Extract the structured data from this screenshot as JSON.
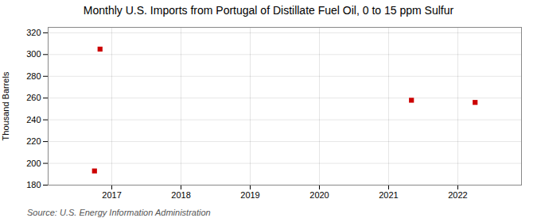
{
  "chart_data": {
    "type": "scatter",
    "title": "Monthly U.S. Imports from Portugal of Distillate Fuel Oil, 0 to 15 ppm Sulfur",
    "ylabel": "Thousand Barrels",
    "source": "Source: U.S. Energy Information Administration",
    "x": [
      2016.75,
      2016.83,
      2021.33,
      2022.25
    ],
    "values": [
      193,
      305,
      258,
      256
    ],
    "color": "#cc0000",
    "marker": "square",
    "xlim": [
      2016.08,
      2022.92
    ],
    "ylim": [
      180,
      325
    ],
    "xticks": [
      2017,
      2018,
      2019,
      2020,
      2021,
      2022
    ],
    "yticks": [
      180,
      200,
      220,
      240,
      260,
      280,
      300,
      320
    ],
    "grid": true
  }
}
